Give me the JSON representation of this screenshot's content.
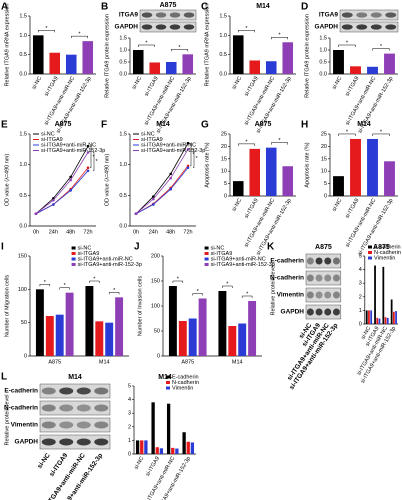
{
  "chart_data": [
    {
      "panel": "A",
      "type": "bar",
      "ylabel": "Relative ITGA9 mRNA expression",
      "categories": [
        "si-NC",
        "si-ITGA9",
        "si-ITGA9+anti-miR-NC",
        "si-ITGA9+anti-miR-152-3p"
      ],
      "values": [
        1.0,
        0.55,
        0.5,
        0.85
      ],
      "colors": [
        "#000000",
        "#e41a1c",
        "#2b3cd6",
        "#8e3fb5"
      ],
      "ylim": [
        0,
        1.5
      ],
      "yticks": [
        {
          "value": 0,
          "label": "0.0"
        },
        0.5,
        {
          "value": 1,
          "label": "1.0"
        },
        1.5
      ],
      "brackets": [
        [
          0,
          1
        ],
        [
          2,
          3
        ]
      ],
      "bracket_label": "*"
    },
    {
      "panel": "B",
      "type": "bar",
      "title": "A875",
      "blot": [
        "ITGA9",
        "GAPDH"
      ],
      "ylabel": "Relative ITGA9 protein expression",
      "categories": [
        "si-NC",
        "si-ITGA9",
        "si-ITGA9+anti-miR-NC",
        "si-ITGA9+anti-miR-152-3p"
      ],
      "values": [
        1.0,
        0.48,
        0.5,
        0.82
      ],
      "colors": [
        "#000000",
        "#e41a1c",
        "#2b3cd6",
        "#8e3fb5"
      ],
      "ylim": [
        0,
        1.5
      ],
      "yticks": [
        {
          "value": 0,
          "label": "0.0"
        },
        0.5,
        {
          "value": 1,
          "label": "1.0"
        },
        1.5
      ],
      "brackets": [
        [
          0,
          1
        ],
        [
          2,
          3
        ]
      ],
      "bracket_label": "*"
    },
    {
      "panel": "C",
      "type": "bar",
      "title": "M14",
      "ylabel": "Relative ITGA9 mRNA expression",
      "categories": [
        "si-NC",
        "si-ITGA9",
        "si-ITGA9+anti-miR-NC",
        "si-ITGA9+anti-miR-152-3p"
      ],
      "values": [
        1.0,
        0.35,
        0.33,
        0.82
      ],
      "colors": [
        "#000000",
        "#e41a1c",
        "#2b3cd6",
        "#8e3fb5"
      ],
      "ylim": [
        0,
        1.5
      ],
      "yticks": [
        {
          "value": 0,
          "label": "0.0"
        },
        0.5,
        {
          "value": 1,
          "label": "1.0"
        },
        1.5
      ],
      "brackets": [
        [
          0,
          1
        ],
        [
          2,
          3
        ]
      ],
      "bracket_label": "*"
    },
    {
      "panel": "D",
      "type": "bar",
      "blot": [
        "ITGA9",
        "GAPDH"
      ],
      "ylabel": "Relative ITGA9 protein expression",
      "categories": [
        "si-NC",
        "si-ITGA9",
        "si-ITGA9+anti-miR-NC",
        "si-ITGA9+anti-miR-152-3p"
      ],
      "values": [
        1.0,
        0.32,
        0.3,
        0.85
      ],
      "colors": [
        "#000000",
        "#e41a1c",
        "#2b3cd6",
        "#8e3fb5"
      ],
      "ylim": [
        0,
        1.5
      ],
      "yticks": [
        {
          "value": 0,
          "label": "0.0"
        },
        0.5,
        {
          "value": 1,
          "label": "1.0"
        },
        1.5
      ],
      "brackets": [
        [
          0,
          1
        ],
        [
          2,
          3
        ]
      ],
      "bracket_label": "*"
    },
    {
      "panel": "E",
      "type": "line",
      "title": "A875",
      "ylabel": "OD value (λ=490 nm)",
      "categories": [
        "0h",
        "24h",
        "48h",
        "72h"
      ],
      "series": [
        {
          "name": "si-NC",
          "color": "#000000",
          "values": [
            0.2,
            0.45,
            0.8,
            1.3
          ]
        },
        {
          "name": "si-ITGA9",
          "color": "#e41a1c",
          "values": [
            0.2,
            0.35,
            0.6,
            0.95
          ]
        },
        {
          "name": "si-ITGA9+anti-miR-NC",
          "color": "#2b3cd6",
          "values": [
            0.2,
            0.35,
            0.58,
            0.9
          ]
        },
        {
          "name": "si-ITGA9+anti-miR-152-3p",
          "color": "#8e3fb5",
          "values": [
            0.2,
            0.42,
            0.75,
            1.2
          ]
        }
      ],
      "ylim": [
        0,
        1.5
      ],
      "yticks": [
        {
          "value": 0,
          "label": "0.0"
        },
        0.5,
        {
          "value": 1,
          "label": "1.0"
        },
        1.5
      ],
      "brackets": [
        [
          0,
          1
        ],
        [
          2,
          3
        ]
      ],
      "bracket_label": "*"
    },
    {
      "panel": "F",
      "type": "line",
      "title": "M14",
      "ylabel": "OD value (λ=490 nm)",
      "categories": [
        "0h",
        "24h",
        "48h",
        "72h"
      ],
      "series": [
        {
          "name": "si-NC",
          "color": "#000000",
          "values": [
            0.2,
            0.48,
            0.85,
            1.35
          ]
        },
        {
          "name": "si-ITGA9",
          "color": "#e41a1c",
          "values": [
            0.2,
            0.36,
            0.62,
            0.98
          ]
        },
        {
          "name": "si-ITGA9+anti-miR-NC",
          "color": "#2b3cd6",
          "values": [
            0.2,
            0.35,
            0.6,
            0.95
          ]
        },
        {
          "name": "si-ITGA9+anti-miR-152-3p",
          "color": "#8e3fb5",
          "values": [
            0.2,
            0.44,
            0.78,
            1.25
          ]
        }
      ],
      "ylim": [
        0,
        1.5
      ],
      "yticks": [
        {
          "value": 0,
          "label": "0.0"
        },
        0.5,
        {
          "value": 1,
          "label": "1.0"
        },
        1.5
      ],
      "brackets": [
        [
          0,
          1
        ],
        [
          2,
          3
        ]
      ],
      "bracket_label": "*"
    },
    {
      "panel": "G",
      "type": "bar",
      "title": "A875",
      "ylabel": "Apoptosis rate (%)",
      "categories": [
        "si-NC",
        "si-ITGA9",
        "si-ITGA9+anti-miR-NC",
        "si-ITGA9+anti-miR-152-3p"
      ],
      "values": [
        6,
        19,
        19.5,
        12
      ],
      "colors": [
        "#000000",
        "#e41a1c",
        "#2b3cd6",
        "#8e3fb5"
      ],
      "ylim": [
        0,
        25
      ],
      "yticks": [
        0,
        5,
        10,
        15,
        20,
        25
      ],
      "brackets": [
        [
          0,
          1
        ],
        [
          2,
          3
        ]
      ],
      "bracket_label": "*"
    },
    {
      "panel": "H",
      "type": "bar",
      "title": "M14",
      "ylabel": "Apoptosis rate (%)",
      "categories": [
        "si-NC",
        "si-ITGA9",
        "si-ITGA9+anti-miR-NC",
        "si-ITGA9+anti-miR-152-3p"
      ],
      "values": [
        8,
        23,
        23,
        14
      ],
      "colors": [
        "#000000",
        "#e41a1c",
        "#2b3cd6",
        "#8e3fb5"
      ],
      "ylim": [
        0,
        25
      ],
      "yticks": [
        0,
        5,
        10,
        15,
        20,
        25
      ],
      "brackets": [
        [
          0,
          1
        ],
        [
          2,
          3
        ]
      ],
      "bracket_label": "*"
    },
    {
      "panel": "I",
      "type": "grouped_bar",
      "ylabel": "Number of Migration cells",
      "categories": [
        "A875",
        "M14"
      ],
      "series": [
        {
          "name": "si-NC",
          "color": "#000000",
          "values": [
            100,
            105
          ]
        },
        {
          "name": "si-ITGA9",
          "color": "#e41a1c",
          "values": [
            60,
            52
          ]
        },
        {
          "name": "si-ITGA9+anti-miR-NC",
          "color": "#2b3cd6",
          "values": [
            62,
            50
          ]
        },
        {
          "name": "si-ITGA9+anti-miR-152-3p",
          "color": "#8e3fb5",
          "values": [
            95,
            88
          ]
        }
      ],
      "ylim": [
        0,
        150
      ],
      "yticks": [
        0,
        50,
        100,
        150
      ],
      "brackets": [
        [
          0,
          1
        ],
        [
          2,
          3
        ]
      ],
      "bracket_label": "*"
    },
    {
      "panel": "J",
      "type": "grouped_bar",
      "ylabel": "Number of Invasion cells",
      "categories": [
        "A875",
        "M14"
      ],
      "series": [
        {
          "name": "si-NC",
          "color": "#000000",
          "values": [
            140,
            130
          ]
        },
        {
          "name": "si-ITGA9",
          "color": "#e41a1c",
          "values": [
            70,
            60
          ]
        },
        {
          "name": "si-ITGA9+anti-miR-NC",
          "color": "#2b3cd6",
          "values": [
            75,
            65
          ]
        },
        {
          "name": "si-ITGA9+anti-miR-152-3p",
          "color": "#8e3fb5",
          "values": [
            115,
            110
          ]
        }
      ],
      "ylim": [
        0,
        200
      ],
      "yticks": [
        0,
        50,
        100,
        150,
        200
      ],
      "brackets": [
        [
          0,
          1
        ],
        [
          2,
          3
        ]
      ],
      "bracket_label": "*"
    },
    {
      "panel": "K",
      "type": "grouped_bar",
      "title": "A875",
      "blot": [
        "E-cadherin",
        "N-cadherin",
        "Vimentin",
        "GAPDH"
      ],
      "ylabel": "Relative protein level",
      "categories": [
        "si-NC",
        "si-ITGA9",
        "si-ITGA9+anti-miR-NC",
        "si-ITGA9+anti-miR-152-3p"
      ],
      "series": [
        {
          "name": "E-cadherin",
          "color": "#000000",
          "values": [
            1,
            4.3,
            4.2,
            1.8
          ]
        },
        {
          "name": "N-cadherin",
          "color": "#e41a1c",
          "values": [
            1,
            0.45,
            0.5,
            0.9
          ]
        },
        {
          "name": "Vimentin",
          "color": "#2b3cd6",
          "values": [
            1,
            0.4,
            0.45,
            0.95
          ]
        }
      ],
      "ylim": [
        0,
        5
      ],
      "yticks": [
        0,
        1,
        2,
        3,
        4,
        5
      ]
    },
    {
      "panel": "L",
      "type": "grouped_bar",
      "title": "M14",
      "blot": [
        "E-cadherin",
        "N-cadherin",
        "Vimentin",
        "GAPDH"
      ],
      "ylabel": "Relative protein level",
      "categories": [
        "si-NC",
        "si-ITGA9",
        "si-ITGA9+anti-miR-NC",
        "si-ITGA9+anti-miR-152-3p"
      ],
      "series": [
        {
          "name": "E-cadherin",
          "color": "#000000",
          "values": [
            1,
            3.8,
            3.7,
            1.6
          ]
        },
        {
          "name": "N-cadherin",
          "color": "#e41a1c",
          "values": [
            1,
            0.5,
            0.45,
            0.9
          ]
        },
        {
          "name": "Vimentin",
          "color": "#2b3cd6",
          "values": [
            1,
            0.42,
            0.4,
            0.85
          ]
        }
      ],
      "ylim": [
        0,
        5
      ],
      "yticks": [
        0,
        1,
        2,
        3,
        4,
        5
      ]
    }
  ]
}
